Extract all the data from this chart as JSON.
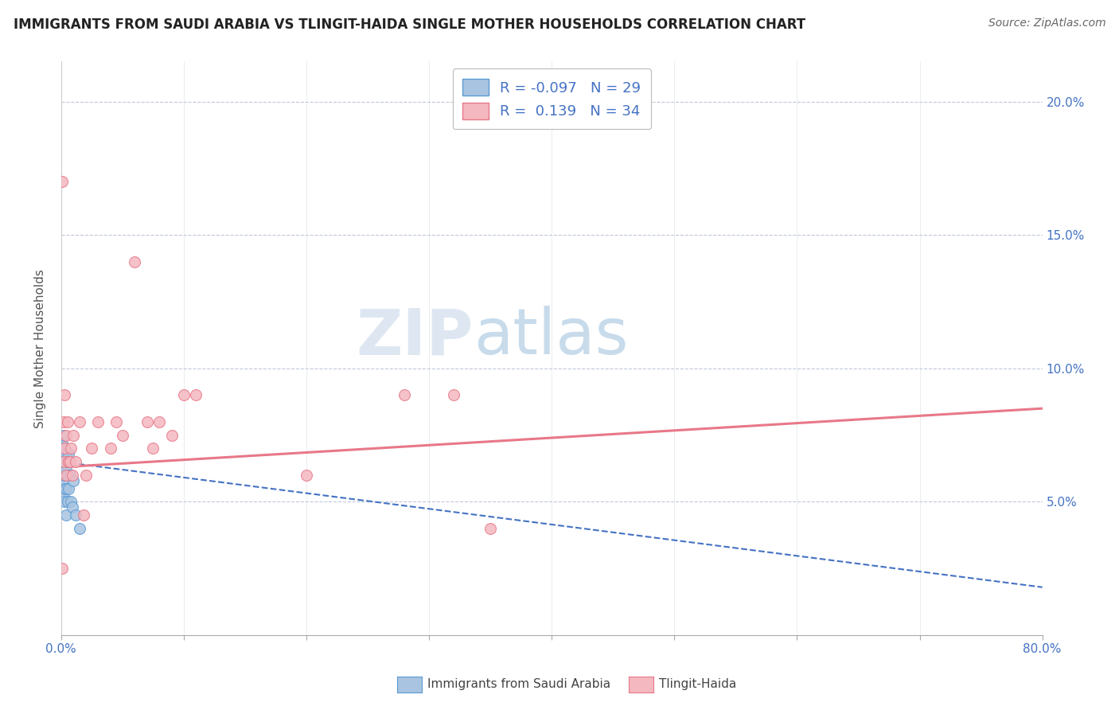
{
  "title": "IMMIGRANTS FROM SAUDI ARABIA VS TLINGIT-HAIDA SINGLE MOTHER HOUSEHOLDS CORRELATION CHART",
  "source": "Source: ZipAtlas.com",
  "ylabel": "Single Mother Households",
  "xlim": [
    0.0,
    0.8
  ],
  "ylim": [
    0.0,
    0.215
  ],
  "xticks": [
    0.0,
    0.1,
    0.2,
    0.3,
    0.4,
    0.5,
    0.6,
    0.7,
    0.8
  ],
  "xticklabels": [
    "0.0%",
    "",
    "",
    "",
    "",
    "",
    "",
    "",
    "80.0%"
  ],
  "yticks_right": [
    0.05,
    0.1,
    0.15,
    0.2
  ],
  "ytick_right_labels": [
    "5.0%",
    "10.0%",
    "15.0%",
    "20.0%"
  ],
  "blue_face_color": "#a8c4e0",
  "blue_edge_color": "#5b9bd5",
  "pink_face_color": "#f4b8c0",
  "pink_edge_color": "#e87888",
  "blue_line_color": "#4472c4",
  "pink_line_color": "#e87888",
  "watermark_zip": "ZIP",
  "watermark_atlas": "atlas",
  "background_color": "#ffffff",
  "blue_scatter_x": [
    0.001,
    0.001,
    0.001,
    0.001,
    0.002,
    0.002,
    0.002,
    0.002,
    0.002,
    0.003,
    0.003,
    0.003,
    0.003,
    0.003,
    0.004,
    0.004,
    0.004,
    0.004,
    0.005,
    0.005,
    0.005,
    0.006,
    0.006,
    0.007,
    0.008,
    0.009,
    0.01,
    0.012,
    0.015
  ],
  "blue_scatter_y": [
    0.072,
    0.068,
    0.065,
    0.06,
    0.075,
    0.07,
    0.065,
    0.058,
    0.052,
    0.07,
    0.065,
    0.06,
    0.055,
    0.05,
    0.068,
    0.062,
    0.055,
    0.045,
    0.065,
    0.06,
    0.05,
    0.068,
    0.055,
    0.06,
    0.05,
    0.048,
    0.058,
    0.045,
    0.04
  ],
  "pink_scatter_x": [
    0.001,
    0.001,
    0.002,
    0.002,
    0.003,
    0.003,
    0.004,
    0.004,
    0.005,
    0.006,
    0.007,
    0.008,
    0.009,
    0.01,
    0.012,
    0.015,
    0.018,
    0.02,
    0.025,
    0.03,
    0.04,
    0.045,
    0.05,
    0.06,
    0.07,
    0.075,
    0.08,
    0.09,
    0.1,
    0.11,
    0.2,
    0.28,
    0.32,
    0.35
  ],
  "pink_scatter_y": [
    0.17,
    0.025,
    0.08,
    0.065,
    0.09,
    0.07,
    0.075,
    0.06,
    0.08,
    0.065,
    0.065,
    0.07,
    0.06,
    0.075,
    0.065,
    0.08,
    0.045,
    0.06,
    0.07,
    0.08,
    0.07,
    0.08,
    0.075,
    0.14,
    0.08,
    0.07,
    0.08,
    0.075,
    0.09,
    0.09,
    0.06,
    0.09,
    0.09,
    0.04
  ],
  "blue_trend_x": [
    0.0,
    0.8
  ],
  "blue_trend_y": [
    0.065,
    0.018
  ],
  "pink_trend_x": [
    0.0,
    0.8
  ],
  "pink_trend_y": [
    0.063,
    0.085
  ]
}
